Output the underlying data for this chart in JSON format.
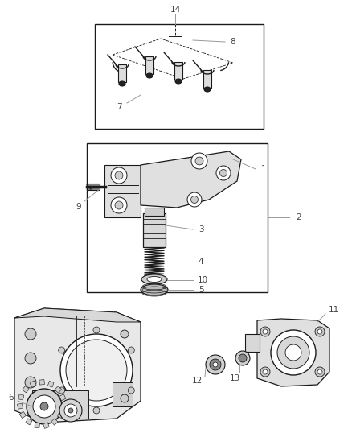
{
  "bg_color": "#ffffff",
  "line_color": "#1a1a1a",
  "label_color": "#444444",
  "fig_width": 4.38,
  "fig_height": 5.33,
  "dpi": 100,
  "leader_color": "#999999"
}
